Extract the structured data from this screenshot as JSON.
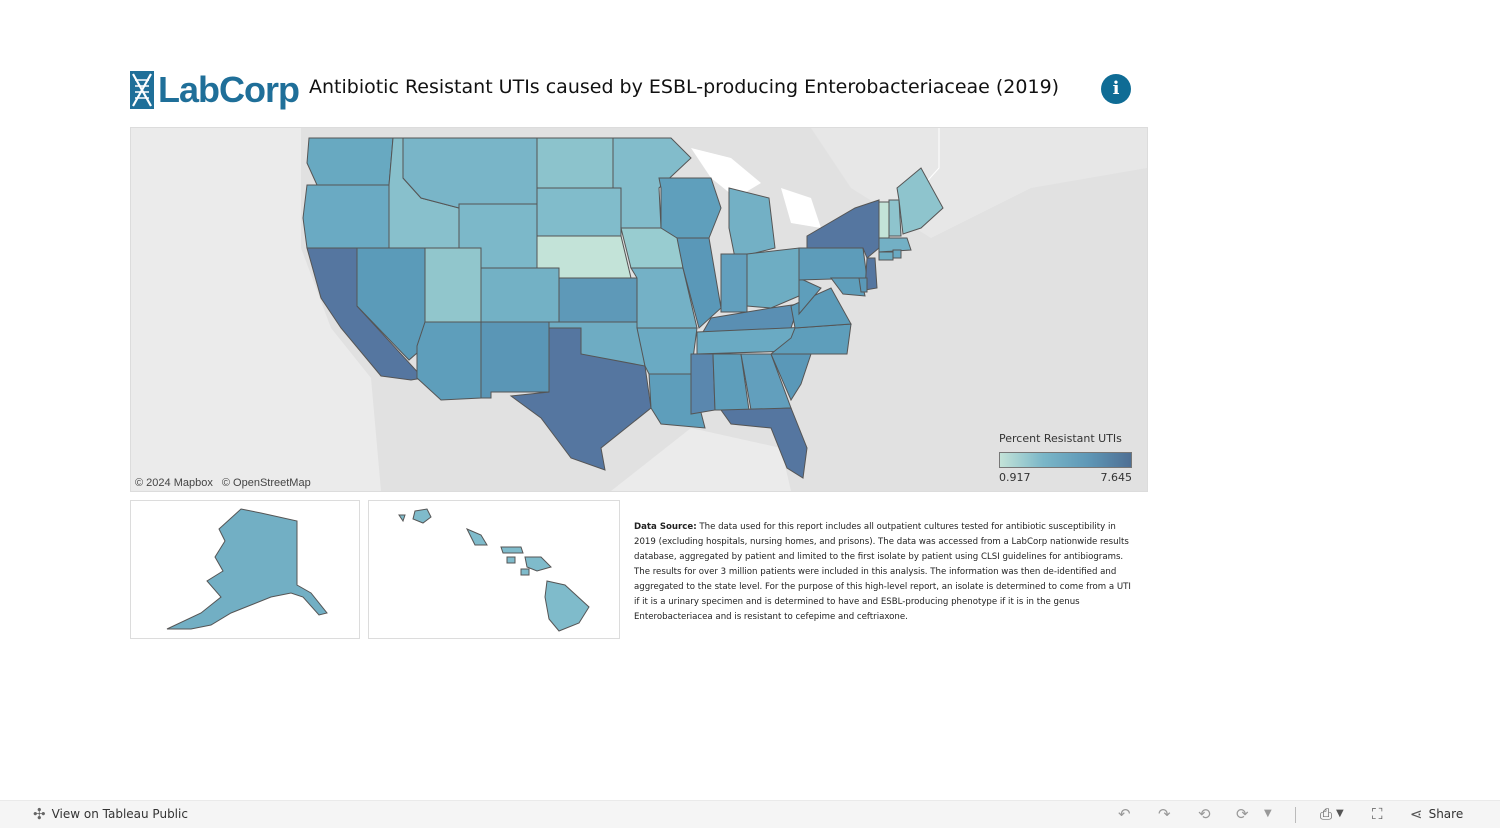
{
  "header": {
    "logo_text": "LabCorp",
    "title": "Antibiotic Resistant UTIs caused by ESBL-producing Enterobacteriaceae (2019)",
    "info_icon": "i"
  },
  "map": {
    "attribution": [
      "© 2024 Mapbox",
      "© OpenStreetMap"
    ],
    "legend": {
      "title": "Percent Resistant UTIs",
      "min": "0.917",
      "max": "7.645"
    },
    "colors": {
      "low": "#c3e3d8",
      "mid": "#6aaac3",
      "high": "#4e6f94"
    }
  },
  "source": {
    "label": "Data Source:",
    "text": " The data used for this report includes all outpatient cultures tested for antibiotic susceptibility in 2019 (excluding hospitals, nursing homes, and prisons). The data was accessed from a LabCorp nationwide results database, aggregated by patient and limited to the first isolate by patient using CLSI guidelines for antibiograms. The results for over 3 million patients were included in this analysis. The information was then de-identified and aggregated to the state level. For the purpose of this high-level report, an isolate is determined to come from a UTI if it is a urinary specimen and is determined to have and ESBL-producing phenotype if it is in the genus Enterobacteriacea and is resistant to cefepime and ceftriaxone."
  },
  "toolbar": {
    "view_on": "View on Tableau Public",
    "share": "Share",
    "icons": [
      "tableau-icon",
      "undo-icon",
      "redo-icon",
      "revert-icon",
      "refresh-icon",
      "download-icon",
      "fullscreen-icon",
      "share-icon"
    ]
  }
}
